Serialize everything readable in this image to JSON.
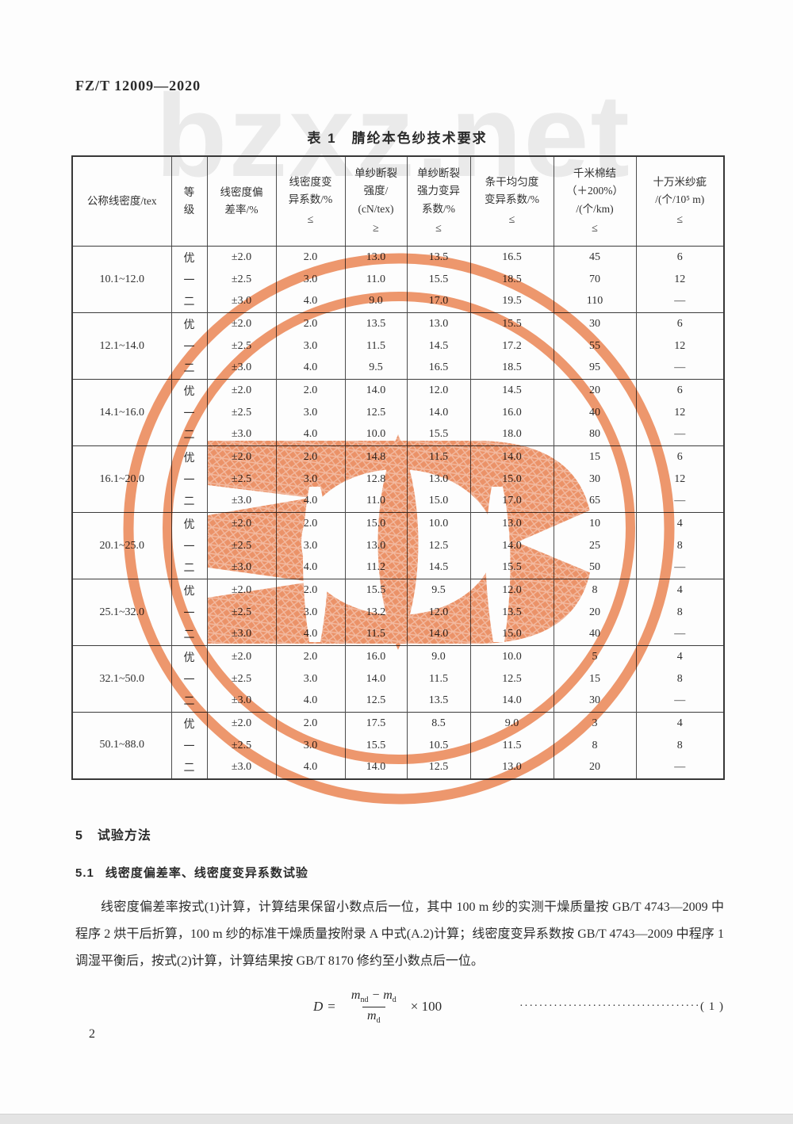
{
  "page": {
    "doc_code": "FZ/T 12009—2020",
    "page_number": "2",
    "site_watermark": "bzxz.net",
    "stamp_color": "#ec8a5c",
    "stamp_ring_color": "#ee8f62"
  },
  "table": {
    "title": "表 1　腈纶本色纱技术要求",
    "headers": [
      {
        "lines": [
          "公称线密度/tex"
        ],
        "constraint": ""
      },
      {
        "lines": [
          "等",
          "级"
        ],
        "constraint": ""
      },
      {
        "lines": [
          "线密度偏",
          "差率/%"
        ],
        "constraint": ""
      },
      {
        "lines": [
          "线密度变",
          "异系数/%"
        ],
        "constraint": "≤"
      },
      {
        "lines": [
          "单纱断裂",
          "强度/",
          "(cN/tex)"
        ],
        "constraint": "≥"
      },
      {
        "lines": [
          "单纱断裂",
          "强力变异",
          "系数/%"
        ],
        "constraint": "≤"
      },
      {
        "lines": [
          "条干均匀度",
          "变异系数/%"
        ],
        "constraint": "≤"
      },
      {
        "lines": [
          "千米棉结",
          "（＋200%）",
          "/(个/km)"
        ],
        "constraint": "≤"
      },
      {
        "lines": [
          "十万米纱疵",
          "/(个/10⁵ m)"
        ],
        "constraint": "≤"
      }
    ],
    "groups": [
      {
        "range": "10.1~12.0",
        "rows": [
          [
            "优",
            "±2.0",
            "2.0",
            "13.0",
            "13.5",
            "16.5",
            "45",
            "6"
          ],
          [
            "一",
            "±2.5",
            "3.0",
            "11.0",
            "15.5",
            "18.5",
            "70",
            "12"
          ],
          [
            "二",
            "±3.0",
            "4.0",
            "9.0",
            "17.0",
            "19.5",
            "110",
            "—"
          ]
        ]
      },
      {
        "range": "12.1~14.0",
        "rows": [
          [
            "优",
            "±2.0",
            "2.0",
            "13.5",
            "13.0",
            "15.5",
            "30",
            "6"
          ],
          [
            "一",
            "±2.5",
            "3.0",
            "11.5",
            "14.5",
            "17.2",
            "55",
            "12"
          ],
          [
            "二",
            "±3.0",
            "4.0",
            "9.5",
            "16.5",
            "18.5",
            "95",
            "—"
          ]
        ]
      },
      {
        "range": "14.1~16.0",
        "rows": [
          [
            "优",
            "±2.0",
            "2.0",
            "14.0",
            "12.0",
            "14.5",
            "20",
            "6"
          ],
          [
            "一",
            "±2.5",
            "3.0",
            "12.5",
            "14.0",
            "16.0",
            "40",
            "12"
          ],
          [
            "二",
            "±3.0",
            "4.0",
            "10.0",
            "15.5",
            "18.0",
            "80",
            "—"
          ]
        ]
      },
      {
        "range": "16.1~20.0",
        "rows": [
          [
            "优",
            "±2.0",
            "2.0",
            "14.8",
            "11.5",
            "14.0",
            "15",
            "6"
          ],
          [
            "一",
            "±2.5",
            "3.0",
            "12.8",
            "13.0",
            "15.0",
            "30",
            "12"
          ],
          [
            "二",
            "±3.0",
            "4.0",
            "11.0",
            "15.0",
            "17.0",
            "65",
            "—"
          ]
        ]
      },
      {
        "range": "20.1~25.0",
        "rows": [
          [
            "优",
            "±2.0",
            "2.0",
            "15.0",
            "10.0",
            "13.0",
            "10",
            "4"
          ],
          [
            "一",
            "±2.5",
            "3.0",
            "13.0",
            "12.5",
            "14.0",
            "25",
            "8"
          ],
          [
            "二",
            "±3.0",
            "4.0",
            "11.2",
            "14.5",
            "15.5",
            "50",
            "—"
          ]
        ]
      },
      {
        "range": "25.1~32.0",
        "rows": [
          [
            "优",
            "±2.0",
            "2.0",
            "15.5",
            "9.5",
            "12.0",
            "8",
            "4"
          ],
          [
            "一",
            "±2.5",
            "3.0",
            "13.2",
            "12.0",
            "13.5",
            "20",
            "8"
          ],
          [
            "二",
            "±3.0",
            "4.0",
            "11.5",
            "14.0",
            "15.0",
            "40",
            "—"
          ]
        ]
      },
      {
        "range": "32.1~50.0",
        "rows": [
          [
            "优",
            "±2.0",
            "2.0",
            "16.0",
            "9.0",
            "10.0",
            "5",
            "4"
          ],
          [
            "一",
            "±2.5",
            "3.0",
            "14.0",
            "11.5",
            "12.5",
            "15",
            "8"
          ],
          [
            "二",
            "±3.0",
            "4.0",
            "12.5",
            "13.5",
            "14.0",
            "30",
            "—"
          ]
        ]
      },
      {
        "range": "50.1~88.0",
        "rows": [
          [
            "优",
            "±2.0",
            "2.0",
            "17.5",
            "8.5",
            "9.0",
            "3",
            "4"
          ],
          [
            "一",
            "±2.5",
            "3.0",
            "15.5",
            "10.5",
            "11.5",
            "8",
            "8"
          ],
          [
            "二",
            "±3.0",
            "4.0",
            "14.0",
            "12.5",
            "13.0",
            "20",
            "—"
          ]
        ]
      }
    ]
  },
  "sections": {
    "s5": {
      "number": "5",
      "title": "试验方法"
    },
    "s51": {
      "number": "5.1",
      "title": "线密度偏差率、线密度变异系数试验"
    }
  },
  "paragraph": "线密度偏差率按式(1)计算，计算结果保留小数点后一位，其中 100 m 纱的实测干燥质量按 GB/T 4743—2009 中程序 2 烘干后折算，100 m 纱的标准干燥质量按附录 A 中式(A.2)计算；线密度变异系数按 GB/T 4743—2009 中程序 1 调湿平衡后，按式(2)计算，计算结果按 GB/T 8170 修约至小数点后一位。",
  "formula": {
    "lhs": "D",
    "eq": "=",
    "num1_base": "m",
    "num1_sub": "nd",
    "minus": "−",
    "num2_base": "m",
    "num2_sub": "d",
    "den_base": "m",
    "den_sub": "d",
    "mult": "× 100",
    "leader": "·····································",
    "number": "( 1 )"
  }
}
